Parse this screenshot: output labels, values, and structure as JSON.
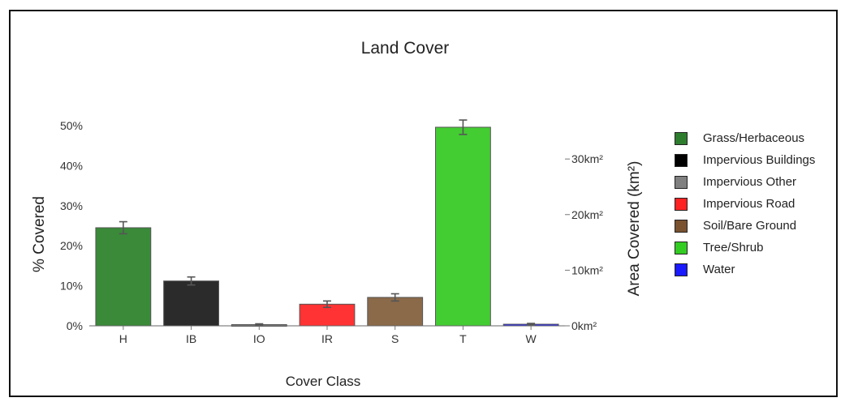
{
  "chart_data": {
    "type": "bar",
    "title": "Land Cover",
    "xlabel": "Cover Class",
    "ylabel": "% Covered",
    "y2label": "Area Covered (km²)",
    "categories": [
      "H",
      "IB",
      "IO",
      "IR",
      "S",
      "T",
      "W"
    ],
    "values": [
      24.5,
      11.2,
      0.3,
      5.4,
      7.1,
      49.6,
      0.4
    ],
    "error": [
      1.5,
      1.0,
      0.2,
      0.8,
      0.9,
      1.8,
      0.2
    ],
    "colors": [
      "#3a8a3a",
      "#2b2b2b",
      "#8a8a8a",
      "#ff3333",
      "#8b6a4a",
      "#44cc33",
      "#2a2aff"
    ],
    "ylim": [
      0,
      50
    ],
    "yticks": [
      0,
      10,
      20,
      30,
      40,
      50
    ],
    "yticklabels": [
      "0%",
      "10%",
      "20%",
      "30%",
      "40%",
      "50%"
    ],
    "y2lim": [
      0,
      36
    ],
    "y2ticks": [
      0,
      10,
      20,
      30
    ],
    "y2ticklabels": [
      "0km²",
      "10km²",
      "20km²",
      "30km²"
    ],
    "grid": false,
    "legend_position": "right",
    "legend": [
      {
        "label": "Grass/Herbaceous",
        "color": "#2e7d2e"
      },
      {
        "label": "Impervious Buildings",
        "color": "#000000"
      },
      {
        "label": "Impervious  Other",
        "color": "#808080"
      },
      {
        "label": "Impervious Road",
        "color": "#ff2222"
      },
      {
        "label": "Soil/Bare Ground",
        "color": "#7a5230"
      },
      {
        "label": "Tree/Shrub",
        "color": "#33cc22"
      },
      {
        "label": "Water",
        "color": "#1a1aff"
      }
    ]
  }
}
